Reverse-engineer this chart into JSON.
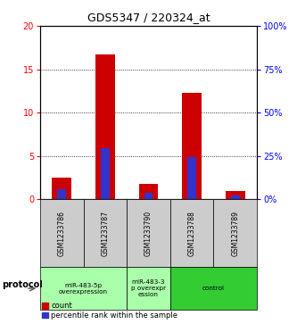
{
  "title": "GDS5347 / 220324_at",
  "samples": [
    "GSM1233786",
    "GSM1233787",
    "GSM1233790",
    "GSM1233788",
    "GSM1233789"
  ],
  "count_values": [
    2.5,
    16.7,
    1.8,
    12.3,
    1.0
  ],
  "percentile_values": [
    6.0,
    29.5,
    3.5,
    24.5,
    2.0
  ],
  "ylim_left": [
    0,
    20
  ],
  "ylim_right": [
    0,
    100
  ],
  "yticks_left": [
    0,
    5,
    10,
    15,
    20
  ],
  "yticks_right": [
    0,
    25,
    50,
    75,
    100
  ],
  "bar_color_count": "#cc0000",
  "bar_color_pct": "#3333cc",
  "bar_width": 0.45,
  "groups": [
    {
      "label": "miR-483-5p\noverexpression",
      "span": 2,
      "color": "#aaffaa"
    },
    {
      "label": "miR-483-3\np overexpr\nession",
      "span": 1,
      "color": "#aaffaa"
    },
    {
      "label": "control",
      "span": 2,
      "color": "#33cc33"
    }
  ],
  "protocol_label": "protocol",
  "legend_count_label": "count",
  "legend_pct_label": "percentile rank within the sample",
  "plot_bg_color": "#ffffff",
  "outer_bg_color": "#ffffff",
  "label_area_bg": "#cccccc"
}
